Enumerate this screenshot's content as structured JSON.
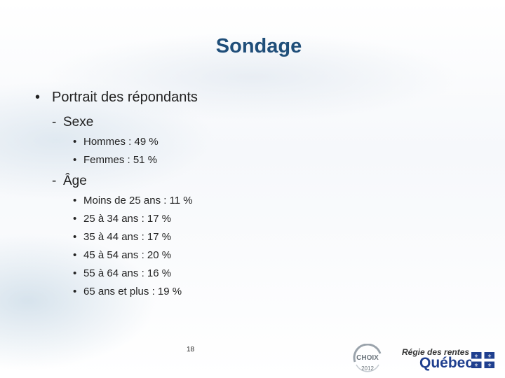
{
  "slide": {
    "title": "Sondage",
    "bullet_main": "Portrait des répondants",
    "sections": [
      {
        "dash": "-",
        "label": "Sexe",
        "items": [
          "Hommes : 49 %",
          "Femmes : 51 %"
        ]
      },
      {
        "dash": "-",
        "label": "Âge",
        "items": [
          "Moins de 25 ans : 11 %",
          "25 à 34 ans : 17 %",
          "35 à 44 ans : 17 %",
          "45 à 54 ans : 20 %",
          "55 à 64 ans : 16 %",
          "65 ans et plus : 19 %"
        ]
      }
    ],
    "page_number": "18",
    "bullet_char": "•"
  },
  "footer": {
    "org_name": "Régie des rentes",
    "org_province": "Québec",
    "seal_top": "CHOIX",
    "seal_bottom": "2012"
  },
  "colors": {
    "title": "#1f4e79",
    "text": "#222222",
    "quebec_blue": "#1f3f8f"
  }
}
